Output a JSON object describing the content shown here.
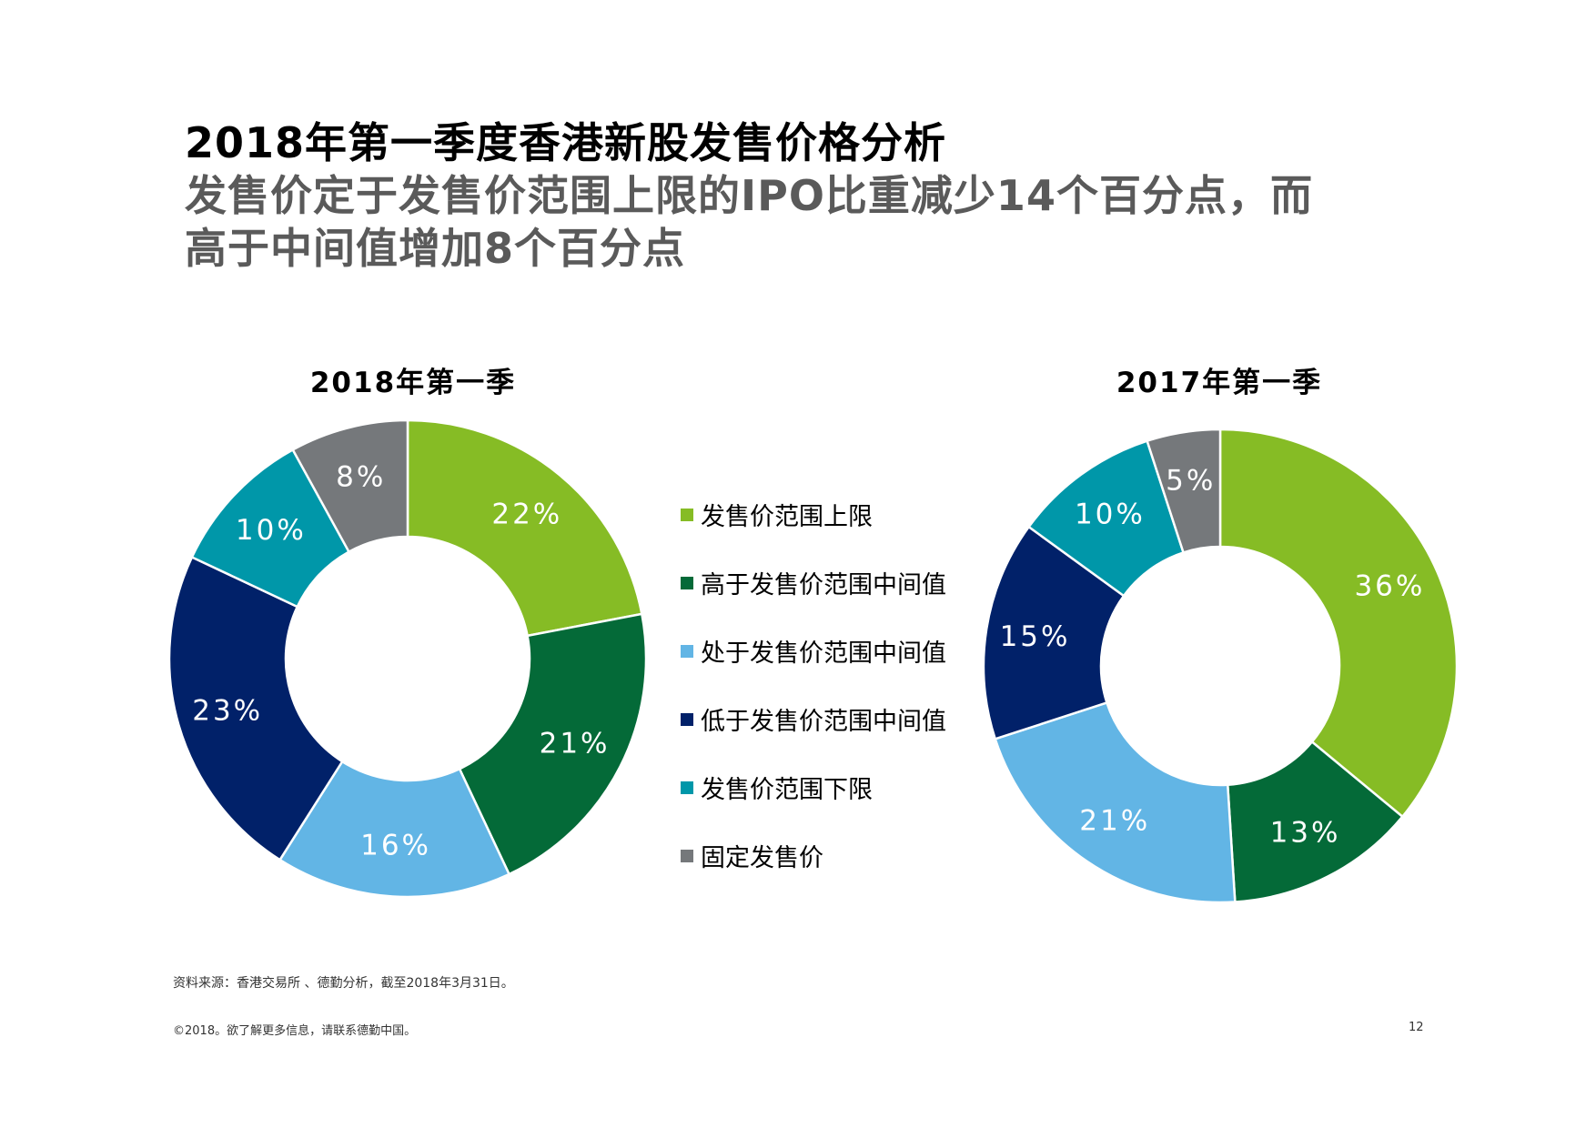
{
  "title": {
    "line1": "2018年第一季度香港新股发售价格分析",
    "line2": "发售价定于发售价范围上限的IPO比重减少14个百分点，而",
    "line3": "高于中间值增加8个百分点"
  },
  "legend": [
    {
      "label": "发售价范围上限",
      "color": "#86bc25"
    },
    {
      "label": "高于发售价范围中间值",
      "color": "#046a38"
    },
    {
      "label": "处于发售价范围中间值",
      "color": "#62b5e5"
    },
    {
      "label": "低于发售价范围中间值",
      "color": "#012169"
    },
    {
      "label": "发售价范围下限",
      "color": "#0097a9"
    },
    {
      "label": "固定发售价",
      "color": "#75787b"
    }
  ],
  "chart_data": [
    {
      "type": "pie",
      "title": "2018年第一季",
      "categories": [
        "发售价范围上限",
        "高于发售价范围中间值",
        "处于发售价范围中间值",
        "低于发售价范围中间值",
        "发售价范围下限",
        "固定发售价"
      ],
      "values": [
        22,
        21,
        16,
        23,
        10,
        8
      ],
      "labels": [
        "22%",
        "21%",
        "16%",
        "23%",
        "10%",
        "8%"
      ]
    },
    {
      "type": "pie",
      "title": "2017年第一季",
      "categories": [
        "发售价范围上限",
        "高于发售价范围中间值",
        "处于发售价范围中间值",
        "低于发售价范围中间值",
        "发售价范围下限",
        "固定发售价"
      ],
      "values": [
        36,
        13,
        21,
        15,
        10,
        5
      ],
      "labels": [
        "36%",
        "13%",
        "21%",
        "15%",
        "10%",
        "5%"
      ]
    }
  ],
  "source": "资料来源：香港交易所 、德勤分析，截至2018年3月31日。",
  "footer": "©2018。欲了解更多信息，请联系德勤中国。",
  "page_number": "12"
}
